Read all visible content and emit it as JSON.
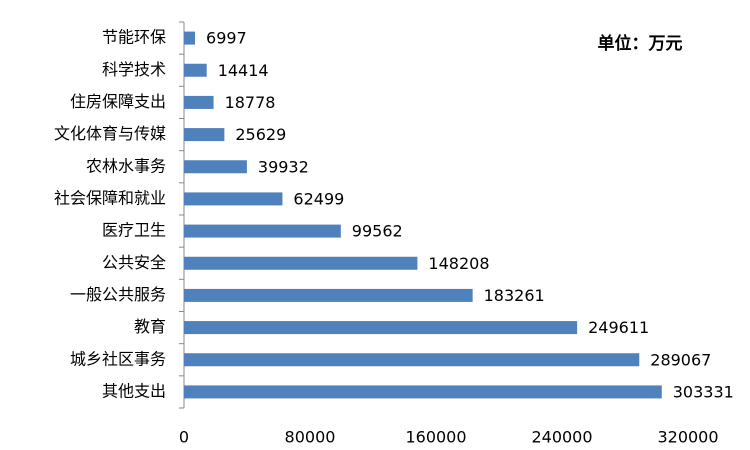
{
  "chart_data": {
    "type": "bar",
    "orientation": "horizontal",
    "annotation": "单位：万元",
    "categories": [
      "节能环保",
      "科学技术",
      "住房保障支出",
      "文化体育与传媒",
      "农林水事务",
      "社会保障和就业",
      "医疗卫生",
      "公共安全",
      "一般公共服务",
      "教育",
      "城乡社区事务",
      "其他支出"
    ],
    "values": [
      6997,
      14414,
      18778,
      25629,
      39932,
      62499,
      99562,
      148208,
      183261,
      249611,
      289067,
      303331
    ],
    "color": "#4f81bd",
    "xlim": [
      0,
      320000
    ],
    "xticks": [
      0,
      80000,
      160000,
      240000,
      320000
    ],
    "grid": false
  }
}
